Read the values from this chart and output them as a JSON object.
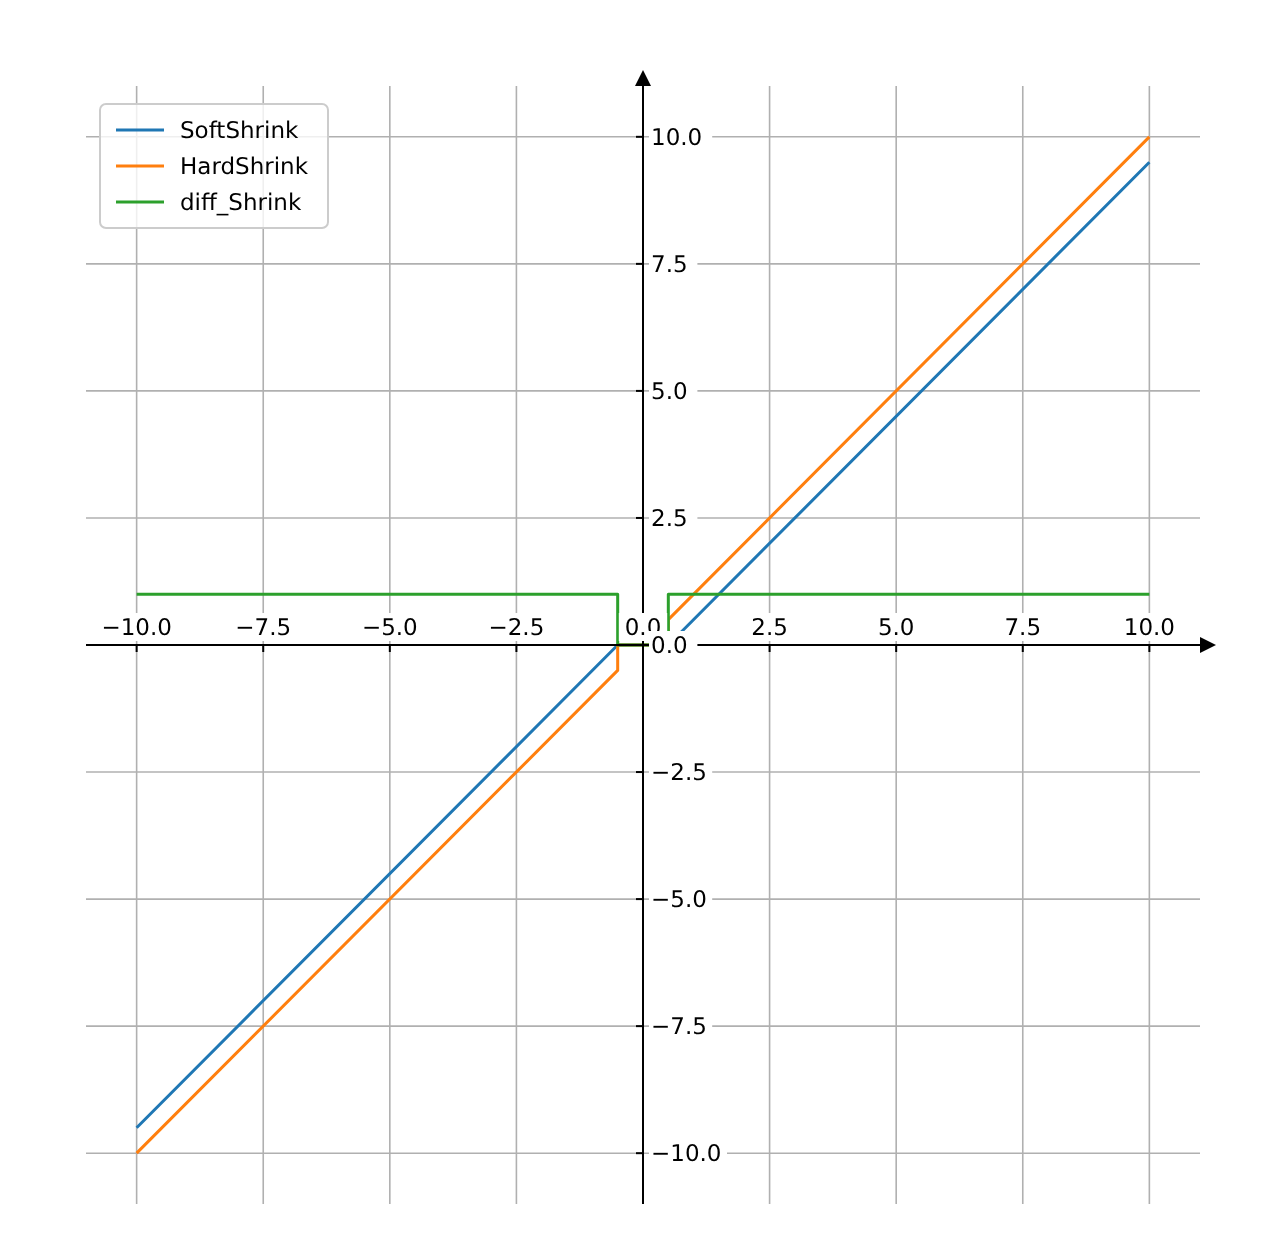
{
  "chart_data": {
    "type": "line",
    "xlim": [
      -11,
      11
    ],
    "ylim": [
      -11,
      11
    ],
    "xticks": [
      {
        "value": -10,
        "label": "−10.0"
      },
      {
        "value": -7.5,
        "label": "−7.5"
      },
      {
        "value": -5,
        "label": "−5.0"
      },
      {
        "value": -2.5,
        "label": "−2.5"
      },
      {
        "value": 0,
        "label": "0.0"
      },
      {
        "value": 2.5,
        "label": "2.5"
      },
      {
        "value": 5,
        "label": "5.0"
      },
      {
        "value": 7.5,
        "label": "7.5"
      },
      {
        "value": 10,
        "label": "10.0"
      }
    ],
    "yticks": [
      {
        "value": -10,
        "label": "−10.0"
      },
      {
        "value": -7.5,
        "label": "−7.5"
      },
      {
        "value": -5,
        "label": "−5.0"
      },
      {
        "value": -2.5,
        "label": "−2.5"
      },
      {
        "value": 0,
        "label": "0.0"
      },
      {
        "value": 2.5,
        "label": "2.5"
      },
      {
        "value": 5,
        "label": "5.0"
      },
      {
        "value": 7.5,
        "label": "7.5"
      },
      {
        "value": 10,
        "label": "10.0"
      }
    ],
    "grid": true,
    "legend": "top left",
    "line_style": "solid",
    "series": [
      {
        "name": "SoftShrink",
        "color": "#1f77b4",
        "x": [
          -10,
          -0.5,
          0.5,
          10
        ],
        "values": [
          -9.5,
          0,
          0,
          9.5
        ]
      },
      {
        "name": "HardShrink",
        "color": "#ff7f0e",
        "x": [
          -10,
          -0.5,
          -0.5,
          0.5,
          0.5,
          10
        ],
        "values": [
          -10,
          -0.5,
          0,
          0,
          0.5,
          10
        ]
      },
      {
        "name": "diff_Shrink",
        "color": "#2ca02c",
        "x": [
          -10,
          -0.5,
          -0.5,
          0.5,
          0.5,
          10
        ],
        "values": [
          1,
          1,
          0,
          0,
          1,
          1
        ]
      }
    ]
  }
}
